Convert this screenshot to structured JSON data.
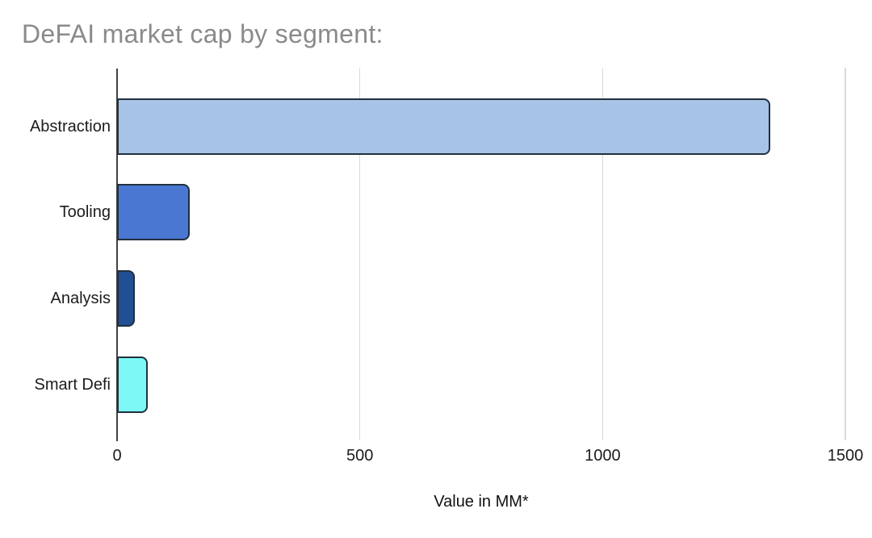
{
  "chart_data": {
    "type": "bar",
    "orientation": "horizontal",
    "title": "DeFAI market cap by segment:",
    "categories": [
      "Abstraction",
      "Tooling",
      "Analysis",
      "Smart Defi"
    ],
    "values": [
      1345,
      150,
      37,
      63
    ],
    "bar_colors": [
      "#a7c3e6",
      "#4a77d2",
      "#224f94",
      "#7ef8f6"
    ],
    "xlabel": "Value in MM*",
    "xlim": [
      0,
      1500
    ],
    "xticks": [
      0,
      500,
      1000,
      1500
    ],
    "tick_labels": [
      "0",
      "500",
      "1000",
      "1500"
    ],
    "grid": true,
    "legend": "none",
    "colors": {
      "background": "#ffffff",
      "title": "#8a8a8a",
      "bar_border": "#22303f",
      "axis_line": "#424242",
      "gridline": "#dadada",
      "tick_label": "#1c1c1c",
      "category_label": "#1c1c1c",
      "axis_title": "#111111"
    }
  }
}
